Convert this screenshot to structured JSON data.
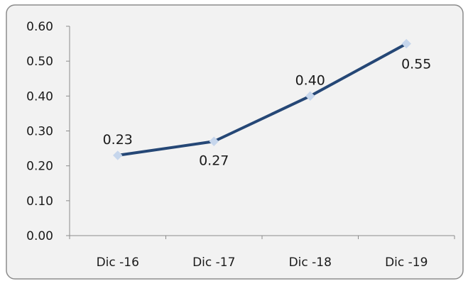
{
  "chart_data": {
    "type": "line",
    "title": "",
    "xlabel": "",
    "ylabel": "",
    "categories": [
      "Dic -16",
      "Dic -17",
      "Dic -18",
      "Dic -19"
    ],
    "series": [
      {
        "values": [
          0.23,
          0.27,
          0.4,
          0.55
        ],
        "labels": [
          "0.23",
          "0.27",
          "0.40",
          "0.55"
        ],
        "color": "#254776",
        "marker_color": "#c6d6ec"
      }
    ],
    "ylim": [
      0,
      0.6
    ],
    "yticks": [
      "0.00",
      "0.10",
      "0.20",
      "0.30",
      "0.40",
      "0.50",
      "0.60"
    ],
    "grid": false,
    "legend": "none"
  },
  "colors": {
    "panel_background": "#f2f2f2",
    "panel_border": "#8c8c8c",
    "axis": "#8c8c8c",
    "text": "#1a1a1a"
  }
}
